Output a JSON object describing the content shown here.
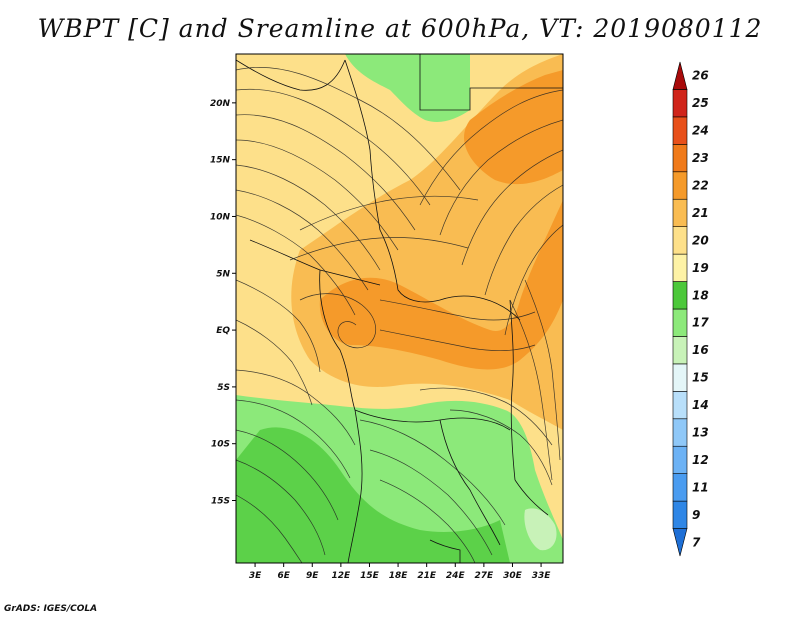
{
  "title": "WBPT [C] and Sreamline at 600hPa, VT: 2019080112",
  "credit": "GrADS: IGES/COLA",
  "map": {
    "lon_labels": [
      "3E",
      "6E",
      "9E",
      "12E",
      "15E",
      "18E",
      "21E",
      "24E",
      "27E",
      "30E",
      "33E"
    ],
    "lat_labels": [
      "20N",
      "15N",
      "10N",
      "5N",
      "EQ",
      "5S",
      "10S",
      "15S"
    ],
    "lon_values": [
      3,
      6,
      9,
      12,
      15,
      18,
      21,
      24,
      27,
      30,
      33
    ],
    "lat_values": [
      20,
      15,
      10,
      5,
      0,
      -5,
      -10,
      -15
    ]
  },
  "colorbar": {
    "labels": [
      "7",
      "9",
      "11",
      "12",
      "13",
      "14",
      "15",
      "16",
      "17",
      "18",
      "19",
      "20",
      "21",
      "22",
      "23",
      "24",
      "25",
      "26"
    ],
    "colors": [
      "#1e6fd6",
      "#2e86e6",
      "#4a9cf0",
      "#6cb2f5",
      "#8fc8f8",
      "#b8dffa",
      "#e4f6f8",
      "#c8f2b8",
      "#8ce97a",
      "#4cc83a",
      "#fdf2a6",
      "#fde08a",
      "#f9bc52",
      "#f59a2a",
      "#f07a1a",
      "#e8501a",
      "#d0241a",
      "#a80a0a"
    ]
  }
}
